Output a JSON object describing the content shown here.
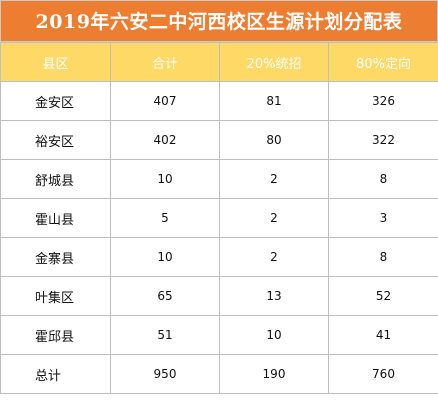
{
  "title": "2019年六安二中河西校区生源计划分配表",
  "headers": [
    "县区",
    "合计",
    "20%统招",
    "80%定向"
  ],
  "rows": [
    [
      "金安区",
      "407",
      "81",
      "326"
    ],
    [
      "裕安区",
      "402",
      "80",
      "322"
    ],
    [
      "舒城县",
      "10",
      "2",
      "8"
    ],
    [
      "霍山县",
      "5",
      "2",
      "3"
    ],
    [
      "金寨县",
      "10",
      "2",
      "8"
    ],
    [
      "叶集区",
      "65",
      "13",
      "52"
    ],
    [
      "霍邱县",
      "51",
      "10",
      "41"
    ],
    [
      "总计",
      "950",
      "190",
      "760"
    ]
  ],
  "colors": {
    "title_bg": "#ed7d31",
    "header_bg": "#ffd966",
    "header_text": "#ffffff",
    "grid": "#bfbfbf"
  }
}
